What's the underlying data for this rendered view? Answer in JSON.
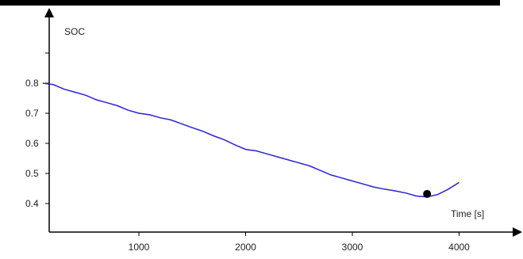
{
  "chart_data": {
    "type": "line",
    "title": "",
    "xlabel": "Time [s]",
    "ylabel": "SOC",
    "xlim": [
      100,
      4000
    ],
    "ylim": [
      0.32,
      0.97
    ],
    "xticks": [
      1000,
      2000,
      3000,
      4000
    ],
    "xtick_labels": [
      "1000",
      "2000",
      "3000",
      "4000"
    ],
    "yticks": [
      0.4,
      0.5,
      0.6,
      0.7,
      0.8
    ],
    "ytick_labels": [
      "0.4",
      "0.5",
      "0.6",
      "0.7",
      "0.8"
    ],
    "grid": false,
    "legend": "none",
    "series": [
      {
        "color": "#2b22d6",
        "x": [
          100,
          200,
          300,
          400,
          500,
          600,
          700,
          800,
          900,
          1000,
          1100,
          1200,
          1300,
          1400,
          1500,
          1600,
          1700,
          1800,
          1900,
          2000,
          2100,
          2200,
          2300,
          2400,
          2500,
          2600,
          2700,
          2800,
          2900,
          3000,
          3100,
          3200,
          3300,
          3400,
          3500,
          3600,
          3700,
          3800,
          3900,
          4000
        ],
        "values": [
          0.8,
          0.795,
          0.78,
          0.77,
          0.76,
          0.745,
          0.735,
          0.725,
          0.71,
          0.7,
          0.695,
          0.685,
          0.678,
          0.665,
          0.652,
          0.64,
          0.625,
          0.612,
          0.595,
          0.58,
          0.575,
          0.565,
          0.555,
          0.545,
          0.535,
          0.525,
          0.51,
          0.495,
          0.485,
          0.475,
          0.465,
          0.455,
          0.448,
          0.442,
          0.435,
          0.425,
          0.422,
          0.43,
          0.448,
          0.47
        ]
      }
    ],
    "marker": {
      "x": 3700,
      "y": 0.432,
      "color": "#000000"
    }
  }
}
